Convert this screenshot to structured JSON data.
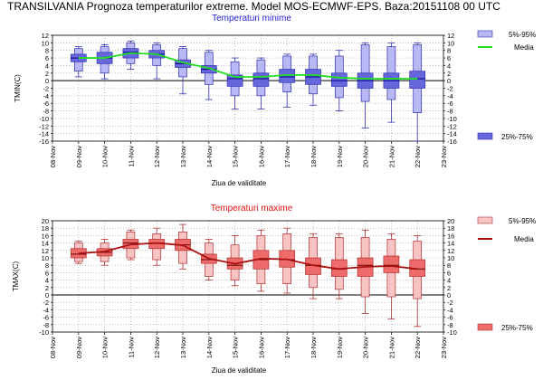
{
  "header": {
    "title": "TRANSILVANIA  Prognoza temperaturilor extreme.  Model MOS-ECMWF-EPS. Baza:20151108 00 UTC"
  },
  "colors": {
    "min_whisker": "#b8b8f4",
    "min_box": "#6666dd",
    "min_outline": "#3030b0",
    "min_median": "#000088",
    "min_mean_line": "#22dd22",
    "min_title": "#2222cc",
    "max_whisker": "#f7c3c3",
    "max_box": "#ee6b6b",
    "max_outline": "#b03030",
    "max_median": "#660000",
    "max_mean_line": "#aa1111",
    "max_title": "#dd1111",
    "zero_line": "#000000",
    "grid": "#999999"
  },
  "chart_data": [
    {
      "type": "box",
      "title": "Temperaturi minime",
      "xlabel": "Ziua de validitate",
      "ylabel": "TMIN(C)",
      "ylim": [
        -16,
        12
      ],
      "y_ticks": [
        12,
        10,
        8,
        6,
        4,
        2,
        0,
        -2,
        -4,
        -6,
        -8,
        -10,
        -12,
        -14,
        -16
      ],
      "grid": true,
      "x_ticks": [
        "08-Nov",
        "09-Nov",
        "10-Nov",
        "11-Nov",
        "12-Nov",
        "13-Nov",
        "14-Nov",
        "15-Nov",
        "16-Nov",
        "17-Nov",
        "18-Nov",
        "19-Nov",
        "20-Nov",
        "21-Nov",
        "22-Nov",
        "23-Nov"
      ],
      "legend": {
        "placement": "right",
        "whisker": "5%-95%",
        "mean": "Media",
        "box": "25%-75%"
      },
      "categories": [
        "09-Nov",
        "10-Nov",
        "11-Nov",
        "12-Nov",
        "13-Nov",
        "14-Nov",
        "15-Nov",
        "16-Nov",
        "17-Nov",
        "18-Nov",
        "19-Nov",
        "20-Nov",
        "21-Nov",
        "22-Nov"
      ],
      "p5": [
        2.5,
        2.0,
        4.5,
        4.0,
        1.0,
        -1.0,
        -4.0,
        -4.0,
        -3.0,
        -3.5,
        -4.5,
        -5.5,
        -5.0,
        -8.5
      ],
      "p25": [
        5.0,
        4.5,
        6.0,
        6.0,
        3.5,
        2.0,
        -1.5,
        -1.5,
        -0.5,
        -1.0,
        -1.5,
        -2.0,
        -2.0,
        -2.0
      ],
      "median": [
        6.0,
        6.0,
        7.5,
        7.0,
        4.5,
        3.0,
        0.5,
        0.5,
        1.0,
        1.0,
        0.0,
        0.0,
        0.0,
        0.5
      ],
      "p75": [
        7.0,
        7.5,
        8.5,
        8.0,
        5.5,
        4.0,
        1.5,
        2.0,
        3.0,
        3.0,
        2.0,
        2.0,
        2.0,
        2.5
      ],
      "p95": [
        8.5,
        9.0,
        10.0,
        9.5,
        8.5,
        7.5,
        5.0,
        5.5,
        6.5,
        6.5,
        6.5,
        9.5,
        9.0,
        9.5
      ],
      "min": [
        1.0,
        0.5,
        3.0,
        0.5,
        -3.5,
        -5.0,
        -7.5,
        -7.5,
        -7.0,
        -6.5,
        -8.0,
        -12.5,
        -11.0,
        -16.0
      ],
      "max": [
        9.0,
        9.5,
        10.5,
        10.0,
        9.0,
        8.0,
        6.0,
        6.0,
        7.0,
        7.0,
        8.0,
        10.0,
        10.0,
        10.0
      ],
      "mean": [
        6.0,
        6.0,
        7.3,
        7.0,
        4.8,
        3.3,
        1.0,
        1.0,
        1.5,
        1.5,
        0.8,
        0.5,
        0.5,
        0.5
      ]
    },
    {
      "type": "box",
      "title": "Temperaturi maxime",
      "xlabel": "Ziua de validitate",
      "ylabel": "TMAX(C)",
      "ylim": [
        -10,
        20
      ],
      "y_ticks": [
        20,
        18,
        16,
        14,
        12,
        10,
        8,
        6,
        4,
        2,
        0,
        -2,
        -4,
        -6,
        -8,
        -10
      ],
      "grid": true,
      "x_ticks": [
        "08-Nov",
        "09-Nov",
        "10-Nov",
        "11-Nov",
        "12-Nov",
        "13-Nov",
        "14-Nov",
        "15-Nov",
        "16-Nov",
        "17-Nov",
        "18-Nov",
        "19-Nov",
        "20-Nov",
        "21-Nov",
        "22-Nov",
        "23-Nov"
      ],
      "legend": {
        "placement": "right",
        "whisker": "5%-95%",
        "mean": "Media",
        "box": "25%-75%"
      },
      "categories": [
        "09-Nov",
        "10-Nov",
        "11-Nov",
        "12-Nov",
        "13-Nov",
        "14-Nov",
        "15-Nov",
        "16-Nov",
        "17-Nov",
        "18-Nov",
        "19-Nov",
        "20-Nov",
        "21-Nov",
        "22-Nov"
      ],
      "p5": [
        9.0,
        9.0,
        10.0,
        9.5,
        8.5,
        5.0,
        4.0,
        3.0,
        3.0,
        2.0,
        1.5,
        -0.5,
        -0.5,
        -1.0
      ],
      "p25": [
        10.0,
        10.5,
        12.5,
        12.5,
        12.0,
        8.5,
        7.0,
        7.0,
        7.5,
        5.5,
        5.0,
        5.0,
        6.0,
        5.0
      ],
      "median": [
        11.0,
        11.5,
        14.0,
        14.0,
        13.5,
        9.5,
        8.0,
        9.5,
        9.5,
        8.0,
        7.0,
        8.0,
        8.0,
        7.0
      ],
      "p75": [
        12.5,
        12.5,
        15.0,
        15.0,
        15.0,
        11.0,
        10.0,
        12.0,
        12.0,
        10.0,
        9.5,
        10.0,
        10.5,
        9.5
      ],
      "p95": [
        14.0,
        14.0,
        17.0,
        16.5,
        17.0,
        14.0,
        13.5,
        16.0,
        16.5,
        15.5,
        15.5,
        15.5,
        15.0,
        14.5
      ],
      "min": [
        8.5,
        8.0,
        9.5,
        8.0,
        7.0,
        4.0,
        2.5,
        1.0,
        0.5,
        -1.0,
        -1.0,
        -5.0,
        -6.5,
        -8.5
      ],
      "max": [
        14.5,
        15.0,
        17.5,
        18.0,
        19.0,
        15.0,
        16.0,
        17.5,
        18.0,
        16.5,
        16.5,
        17.5,
        16.5,
        16.0
      ],
      "mean": [
        11.2,
        11.7,
        13.6,
        14.0,
        13.4,
        9.8,
        8.4,
        9.8,
        9.6,
        8.0,
        7.0,
        7.6,
        7.8,
        7.0
      ]
    }
  ]
}
